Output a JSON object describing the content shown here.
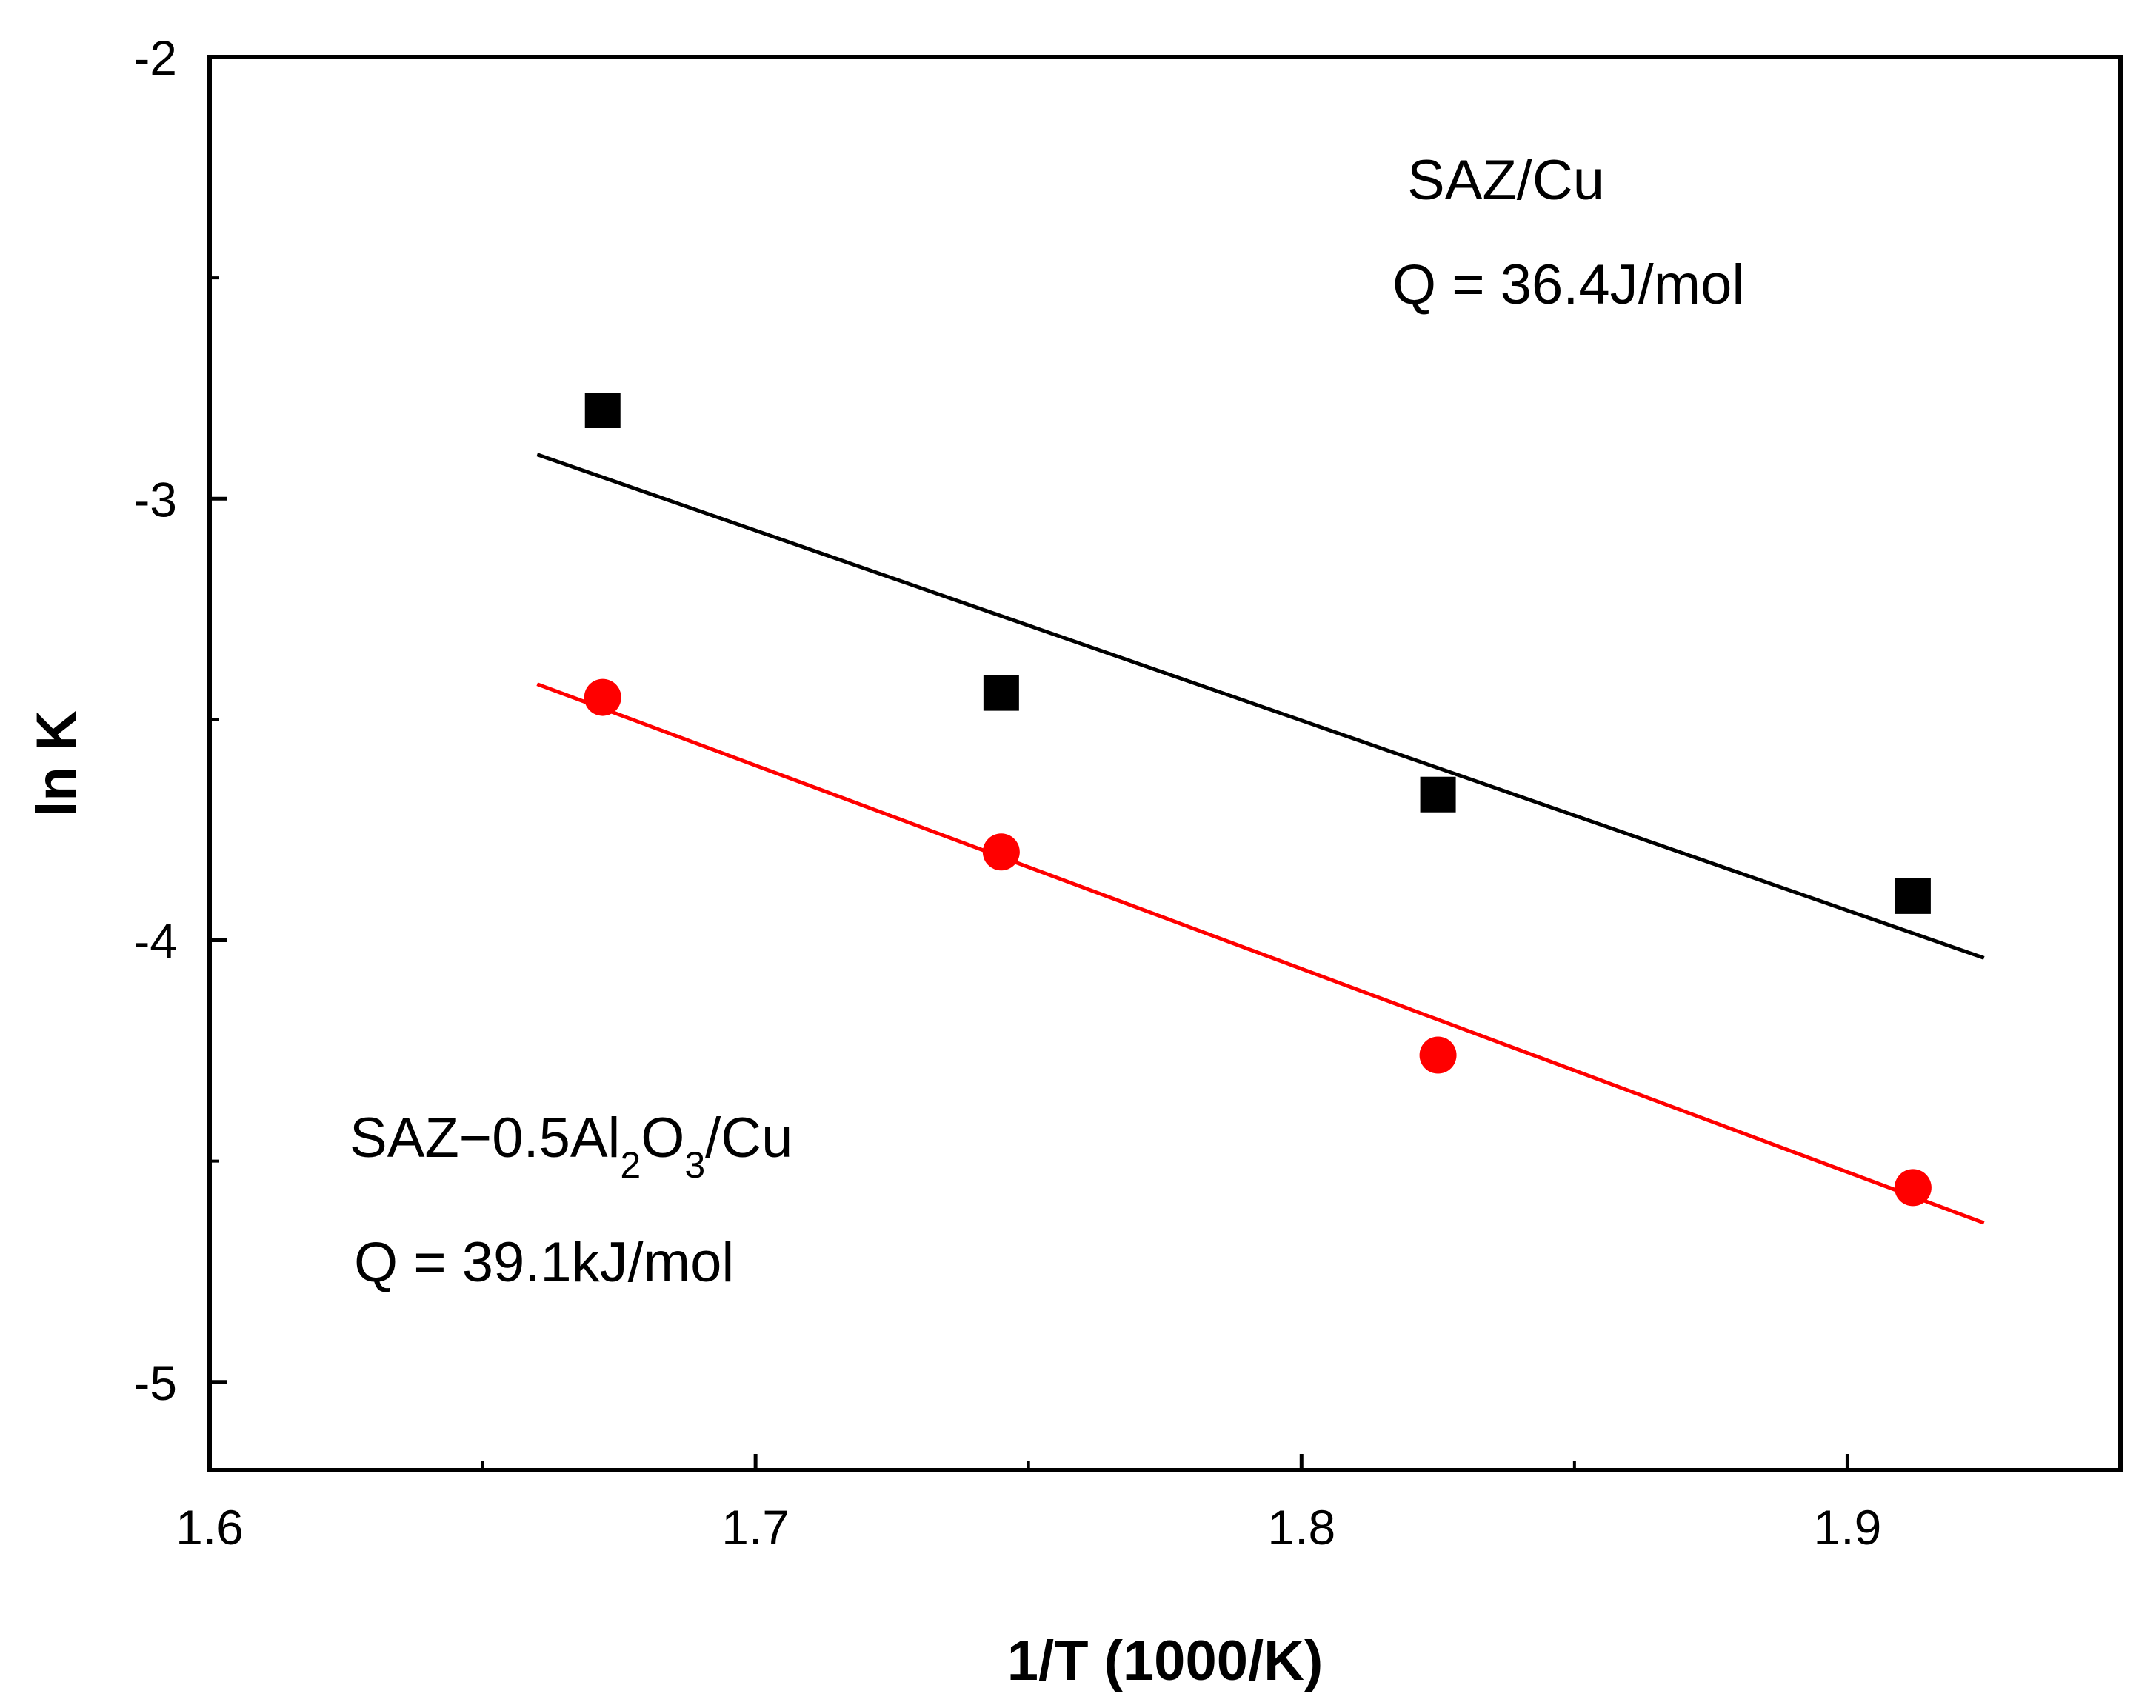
{
  "chart_data": {
    "type": "scatter",
    "title": "",
    "xlabel": "1/T (1000/K)",
    "ylabel": "ln K",
    "xlim": [
      1.6,
      1.95
    ],
    "ylim": [
      -5.2,
      -2
    ],
    "xticks": [
      1.6,
      1.7,
      1.8,
      1.9
    ],
    "xtick_labels": [
      "1.6",
      "1.7",
      "1.8",
      "1.9"
    ],
    "yticks": [
      -2,
      -3,
      -4,
      -5
    ],
    "ytick_labels": [
      "-2",
      "-3",
      "-4",
      "-5"
    ],
    "grid": false,
    "series": [
      {
        "name": "SAZ/Cu",
        "marker": "square",
        "color": "#000000",
        "x": [
          1.672,
          1.745,
          1.825,
          1.912
        ],
        "y": [
          -2.8,
          -3.44,
          -3.67,
          -3.9
        ],
        "fit": {
          "x": [
            1.66,
            1.925
          ],
          "y": [
            -2.9,
            -4.04
          ]
        }
      },
      {
        "name": "SAZ-0.5Al2O3/Cu",
        "marker": "circle",
        "color": "#ff0000",
        "x": [
          1.672,
          1.745,
          1.825,
          1.912
        ],
        "y": [
          -3.45,
          -3.8,
          -4.26,
          -4.56
        ],
        "fit": {
          "x": [
            1.66,
            1.925
          ],
          "y": [
            -3.42,
            -4.64
          ]
        }
      }
    ],
    "annotations": {
      "saz_cu": {
        "name": "SAZ/Cu",
        "q": "Q = 36.4J/mol"
      },
      "saz_al2o3": {
        "name_prefix": "SAZ−0.5Al",
        "sub1": "2",
        "name_mid": "O",
        "sub2": "3",
        "name_suffix": "/Cu",
        "q": "Q = 39.1kJ/mol"
      }
    }
  }
}
